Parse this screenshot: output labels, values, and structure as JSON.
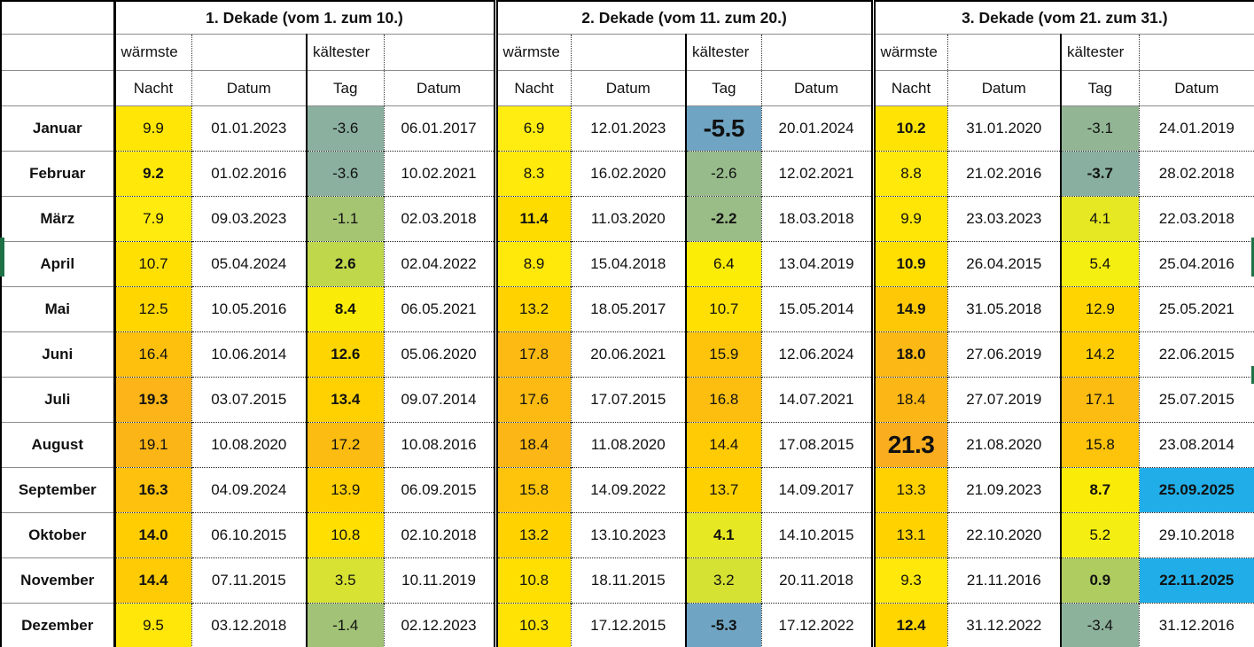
{
  "table": {
    "header": {
      "corner_label": "",
      "decades": [
        {
          "title": "1. Dekade (vom 1. zum 10.)"
        },
        {
          "title": "2. Dekade (vom 11. zum 20.)"
        },
        {
          "title": "3. Dekade (vom 21. zum 31.)"
        }
      ],
      "warm_label": "wärmste",
      "cold_label": "kältester",
      "sub_headers": [
        "Nacht",
        "Datum",
        "Tag",
        "Datum"
      ]
    },
    "highlight_color": "#21AEE8",
    "rows": [
      {
        "month": "Januar",
        "cells": [
          {
            "v": "9.9",
            "bg": "#FFE606"
          },
          {
            "v": "01.01.2023"
          },
          {
            "v": "-3.6",
            "bg": "#8BB0A0"
          },
          {
            "v": "06.01.2017"
          },
          {
            "v": "6.9",
            "bg": "#FFED12"
          },
          {
            "v": "12.01.2023"
          },
          {
            "v": "-5.5",
            "bg": "#6FA5C3",
            "bold": true,
            "big": true
          },
          {
            "v": "20.01.2024"
          },
          {
            "v": "10.2",
            "bg": "#FFE304",
            "bold": true
          },
          {
            "v": "31.01.2020"
          },
          {
            "v": "-3.1",
            "bg": "#92B694"
          },
          {
            "v": "24.01.2019"
          }
        ]
      },
      {
        "month": "Februar",
        "cells": [
          {
            "v": "9.2",
            "bg": "#FFE80A",
            "bold": true
          },
          {
            "v": "01.02.2016"
          },
          {
            "v": "-3.6",
            "bg": "#8BB0A0"
          },
          {
            "v": "10.02.2021"
          },
          {
            "v": "8.3",
            "bg": "#FFEA0C"
          },
          {
            "v": "16.02.2020"
          },
          {
            "v": "-2.6",
            "bg": "#97BB8B"
          },
          {
            "v": "12.02.2021"
          },
          {
            "v": "8.8",
            "bg": "#FFE90B"
          },
          {
            "v": "21.02.2016"
          },
          {
            "v": "-3.7",
            "bg": "#89AFA1",
            "bold": true
          },
          {
            "v": "28.02.2018"
          }
        ]
      },
      {
        "month": "März",
        "cells": [
          {
            "v": "7.9",
            "bg": "#FFEB0E"
          },
          {
            "v": "09.03.2023"
          },
          {
            "v": "-1.1",
            "bg": "#A5C573"
          },
          {
            "v": "02.03.2018"
          },
          {
            "v": "11.4",
            "bg": "#FFDC00",
            "bold": true
          },
          {
            "v": "11.03.2020"
          },
          {
            "v": "-2.2",
            "bg": "#9ABD87",
            "bold": true
          },
          {
            "v": "18.03.2018"
          },
          {
            "v": "9.9",
            "bg": "#FFE606"
          },
          {
            "v": "23.03.2023"
          },
          {
            "v": "4.1",
            "bg": "#E5E822"
          },
          {
            "v": "22.03.2018"
          }
        ]
      },
      {
        "month": "April",
        "cells": [
          {
            "v": "10.7",
            "bg": "#FFE002"
          },
          {
            "v": "05.04.2024"
          },
          {
            "v": "2.6",
            "bg": "#BED74B",
            "bold": true
          },
          {
            "v": "02.04.2022"
          },
          {
            "v": "8.9",
            "bg": "#FFE90B"
          },
          {
            "v": "15.04.2018"
          },
          {
            "v": "6.4",
            "bg": "#FCED06"
          },
          {
            "v": "13.04.2019"
          },
          {
            "v": "10.9",
            "bg": "#FFDF02",
            "bold": true
          },
          {
            "v": "26.04.2015"
          },
          {
            "v": "5.4",
            "bg": "#F5EE11"
          },
          {
            "v": "25.04.2016"
          }
        ]
      },
      {
        "month": "Mai",
        "cells": [
          {
            "v": "12.5",
            "bg": "#FFD600"
          },
          {
            "v": "10.05.2016"
          },
          {
            "v": "8.4",
            "bg": "#FAEC08",
            "bold": true
          },
          {
            "v": "06.05.2021"
          },
          {
            "v": "13.2",
            "bg": "#FFD200"
          },
          {
            "v": "18.05.2017"
          },
          {
            "v": "10.7",
            "bg": "#FFE002"
          },
          {
            "v": "15.05.2014"
          },
          {
            "v": "14.9",
            "bg": "#FFC806",
            "bold": true
          },
          {
            "v": "31.05.2018"
          },
          {
            "v": "12.9",
            "bg": "#FFD400"
          },
          {
            "v": "25.05.2021"
          }
        ]
      },
      {
        "month": "Juni",
        "cells": [
          {
            "v": "16.4",
            "bg": "#FEC00D"
          },
          {
            "v": "10.06.2014"
          },
          {
            "v": "12.6",
            "bg": "#FFD500",
            "bold": true
          },
          {
            "v": "05.06.2020"
          },
          {
            "v": "17.8",
            "bg": "#FDBA13"
          },
          {
            "v": "20.06.2021"
          },
          {
            "v": "15.9",
            "bg": "#FEC30B"
          },
          {
            "v": "12.06.2024"
          },
          {
            "v": "18.0",
            "bg": "#FCB815",
            "bold": true
          },
          {
            "v": "27.06.2019"
          },
          {
            "v": "14.2",
            "bg": "#FFCC03"
          },
          {
            "v": "22.06.2015"
          }
        ]
      },
      {
        "month": "Juli",
        "cells": [
          {
            "v": "19.3",
            "bg": "#FCB418",
            "bold": true
          },
          {
            "v": "03.07.2015"
          },
          {
            "v": "13.4",
            "bg": "#FFD100",
            "bold": true
          },
          {
            "v": "09.07.2014"
          },
          {
            "v": "17.6",
            "bg": "#FDBA12"
          },
          {
            "v": "17.07.2015"
          },
          {
            "v": "16.8",
            "bg": "#FDBE10"
          },
          {
            "v": "14.07.2021"
          },
          {
            "v": "18.4",
            "bg": "#FCB716"
          },
          {
            "v": "27.07.2019"
          },
          {
            "v": "17.1",
            "bg": "#FDBC11"
          },
          {
            "v": "25.07.2015"
          }
        ]
      },
      {
        "month": "August",
        "cells": [
          {
            "v": "19.1",
            "bg": "#FCB517"
          },
          {
            "v": "10.08.2020"
          },
          {
            "v": "17.2",
            "bg": "#FDBC11"
          },
          {
            "v": "10.08.2016"
          },
          {
            "v": "18.4",
            "bg": "#FCB716"
          },
          {
            "v": "11.08.2020"
          },
          {
            "v": "14.4",
            "bg": "#FFCB04"
          },
          {
            "v": "17.08.2015"
          },
          {
            "v": "21.3",
            "bg": "#FAAD1E",
            "bold": true,
            "big": true
          },
          {
            "v": "21.08.2020"
          },
          {
            "v": "15.8",
            "bg": "#FEC30B"
          },
          {
            "v": "23.08.2014"
          }
        ]
      },
      {
        "month": "September",
        "cells": [
          {
            "v": "16.3",
            "bg": "#FEC10D",
            "bold": true
          },
          {
            "v": "04.09.2024"
          },
          {
            "v": "13.9",
            "bg": "#FFCF01"
          },
          {
            "v": "06.09.2015"
          },
          {
            "v": "15.8",
            "bg": "#FEC30B"
          },
          {
            "v": "14.09.2022"
          },
          {
            "v": "13.7",
            "bg": "#FFD000"
          },
          {
            "v": "14.09.2017"
          },
          {
            "v": "13.3",
            "bg": "#FFD100"
          },
          {
            "v": "21.09.2023"
          },
          {
            "v": "8.7",
            "bg": "#FAEC08",
            "bold": true
          },
          {
            "v": "25.09.2025",
            "bg": "#21AEE8",
            "bold": true
          }
        ]
      },
      {
        "month": "Oktober",
        "cells": [
          {
            "v": "14.0",
            "bg": "#FFCD02",
            "bold": true
          },
          {
            "v": "06.10.2015"
          },
          {
            "v": "10.8",
            "bg": "#FFDF02"
          },
          {
            "v": "02.10.2018"
          },
          {
            "v": "13.2",
            "bg": "#FFD200"
          },
          {
            "v": "13.10.2023"
          },
          {
            "v": "4.1",
            "bg": "#E5E822",
            "bold": true
          },
          {
            "v": "14.10.2015"
          },
          {
            "v": "13.1",
            "bg": "#FFD200"
          },
          {
            "v": "22.10.2020"
          },
          {
            "v": "5.2",
            "bg": "#F4EE12"
          },
          {
            "v": "29.10.2018"
          }
        ]
      },
      {
        "month": "November",
        "cells": [
          {
            "v": "14.4",
            "bg": "#FFCB04",
            "bold": true
          },
          {
            "v": "07.11.2015"
          },
          {
            "v": "3.5",
            "bg": "#D7E232"
          },
          {
            "v": "10.11.2019"
          },
          {
            "v": "10.8",
            "bg": "#FFDF02"
          },
          {
            "v": "18.11.2015"
          },
          {
            "v": "3.2",
            "bg": "#D5E133"
          },
          {
            "v": "20.11.2018"
          },
          {
            "v": "9.3",
            "bg": "#FFE80A"
          },
          {
            "v": "21.11.2016"
          },
          {
            "v": "0.9",
            "bg": "#AFCC60",
            "bold": true
          },
          {
            "v": "22.11.2025",
            "bg": "#21AEE8",
            "bold": true
          }
        ]
      },
      {
        "month": "Dezember",
        "cells": [
          {
            "v": "9.5",
            "bg": "#FFE709"
          },
          {
            "v": "03.12.2018"
          },
          {
            "v": "-1.4",
            "bg": "#A2C377"
          },
          {
            "v": "02.12.2023"
          },
          {
            "v": "10.3",
            "bg": "#FFE304"
          },
          {
            "v": "17.12.2015"
          },
          {
            "v": "-5.3",
            "bg": "#6FA5C3",
            "bold": true
          },
          {
            "v": "17.12.2022"
          },
          {
            "v": "12.4",
            "bg": "#FFD600",
            "bold": true
          },
          {
            "v": "31.12.2022"
          },
          {
            "v": "-3.4",
            "bg": "#8DB29B"
          },
          {
            "v": "31.12.2016"
          }
        ]
      }
    ]
  }
}
